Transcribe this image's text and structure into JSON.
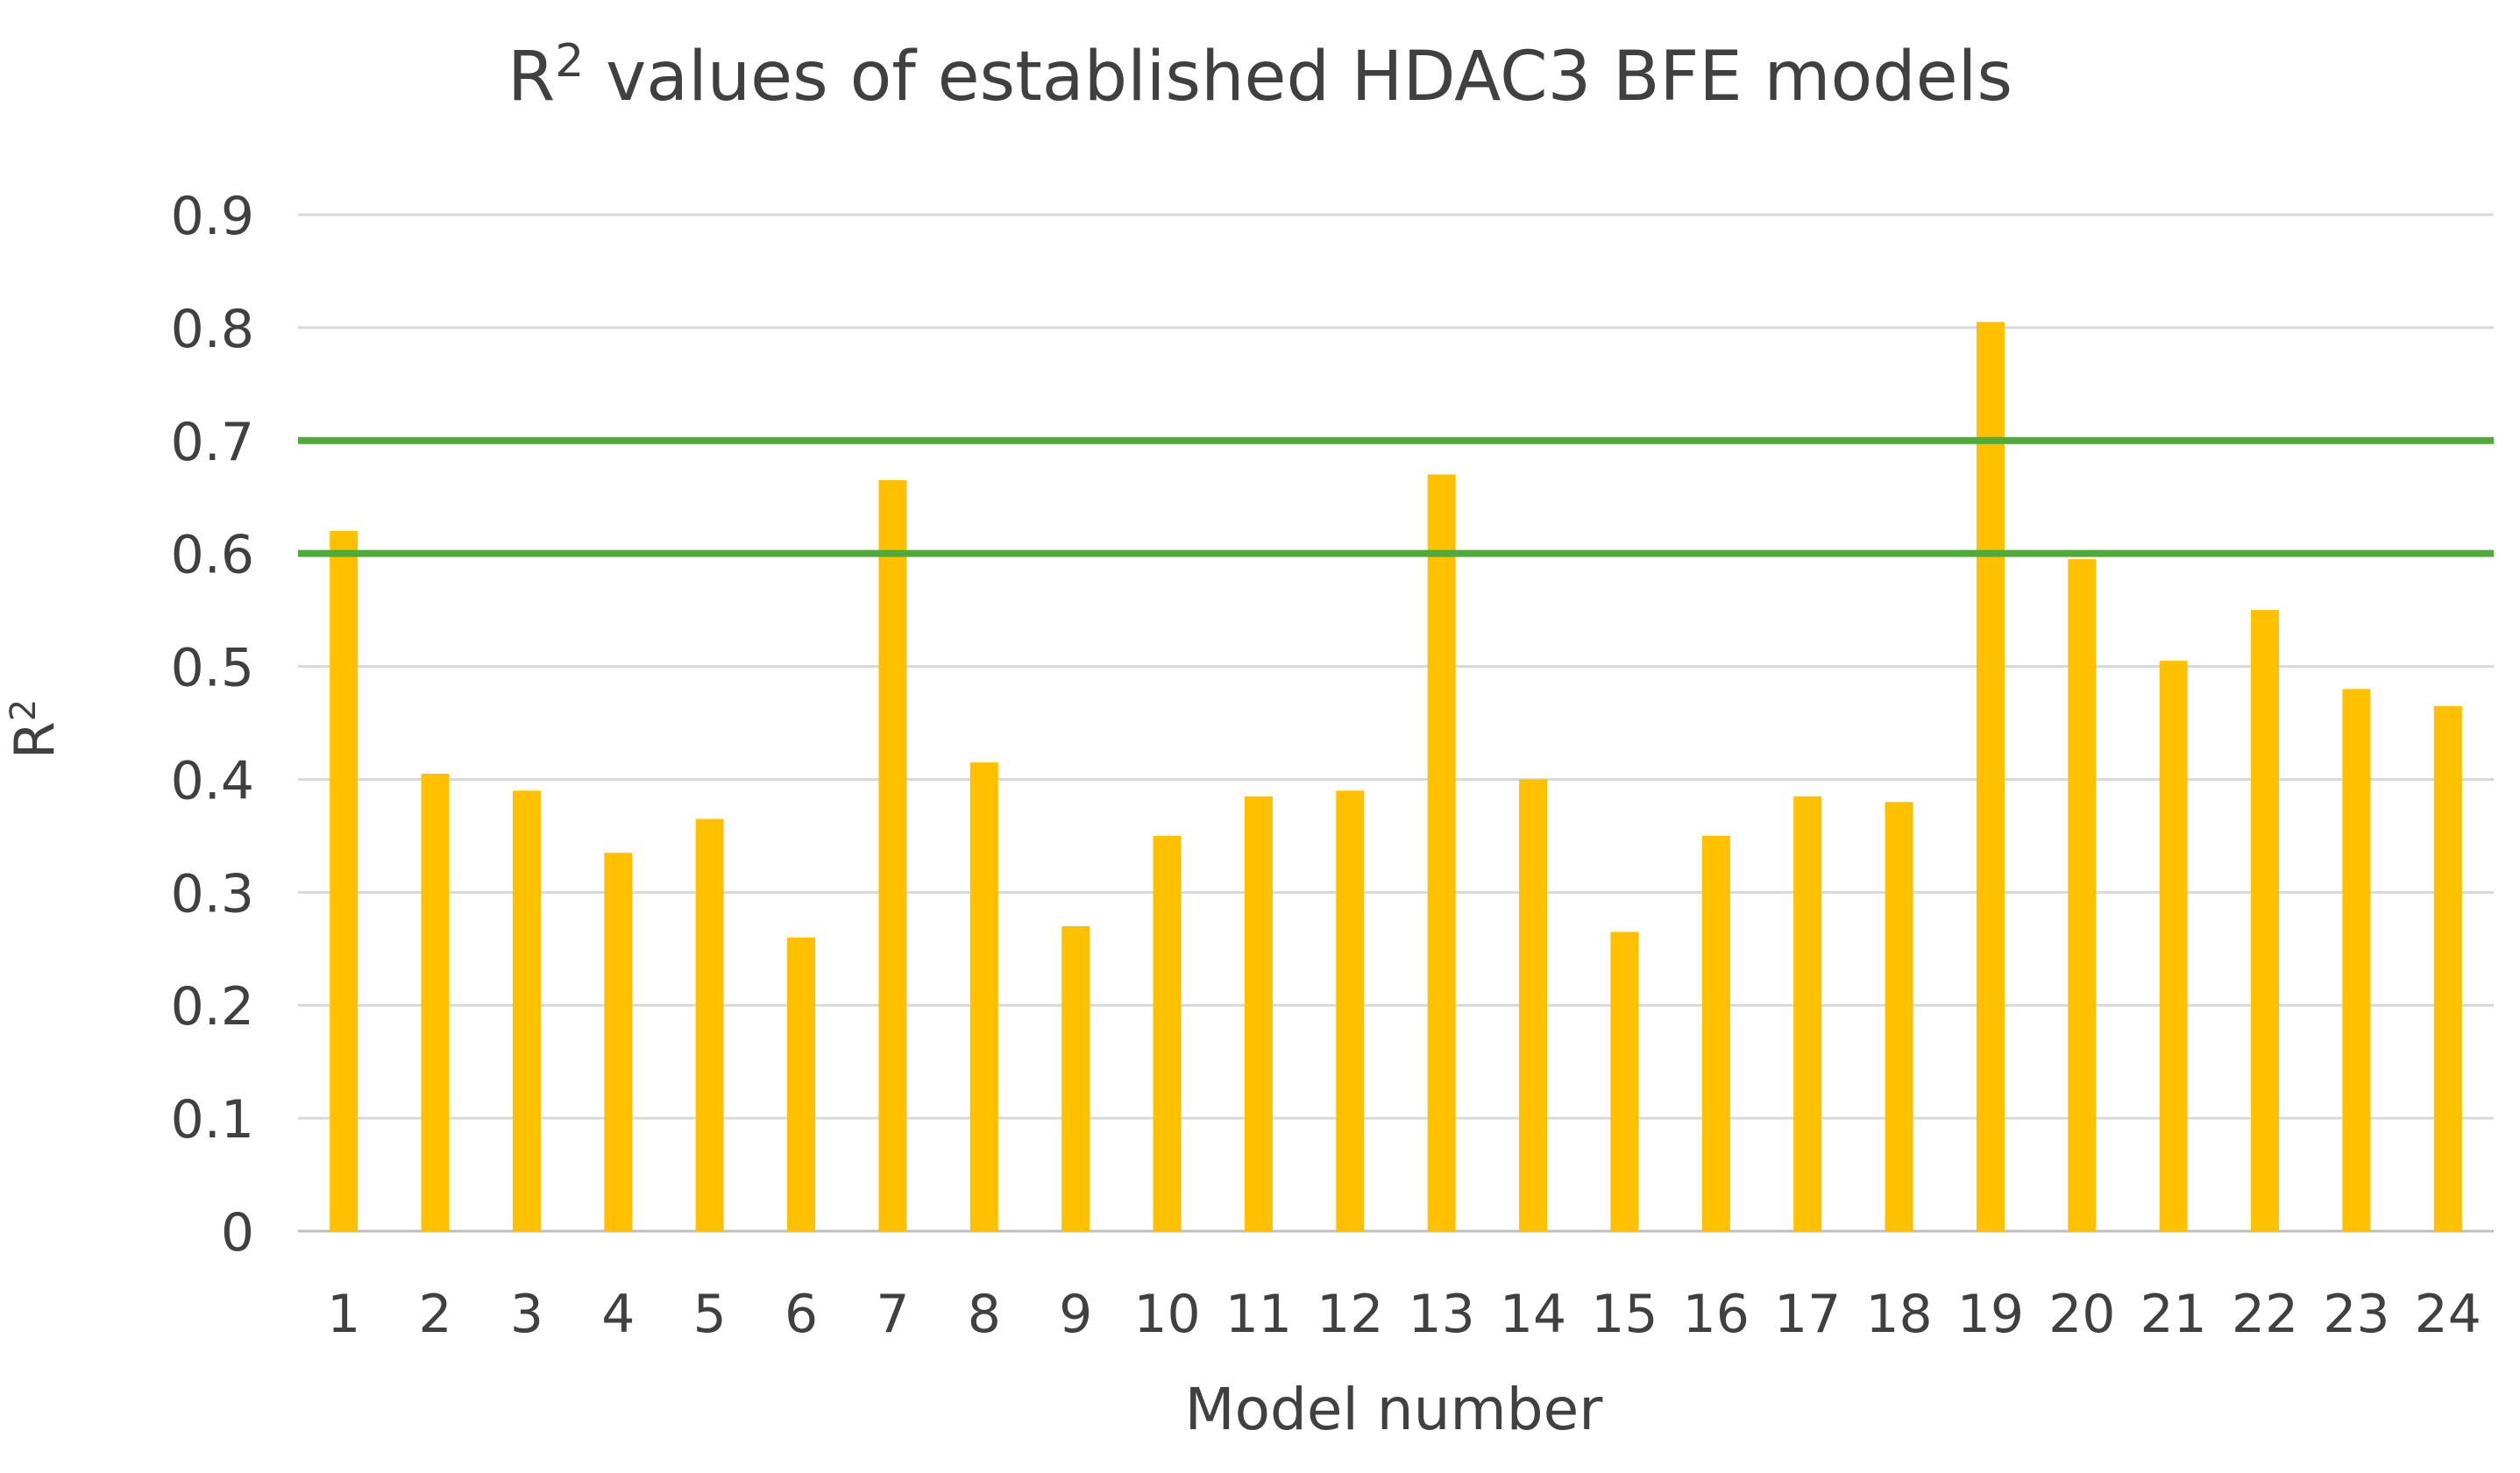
{
  "chart_data": {
    "type": "bar",
    "title": {
      "main": "R",
      "superscript": "2",
      "rest": " values of established HDAC3 BFE models"
    },
    "xlabel": "Model number",
    "ylabel": {
      "main": "R",
      "superscript": "2"
    },
    "categories": [
      "1",
      "2",
      "3",
      "4",
      "5",
      "6",
      "7",
      "8",
      "9",
      "10",
      "11",
      "12",
      "13",
      "14",
      "15",
      "16",
      "17",
      "18",
      "19",
      "20",
      "21",
      "22",
      "23",
      "24"
    ],
    "values": [
      0.62,
      0.405,
      0.39,
      0.335,
      0.365,
      0.26,
      0.665,
      0.415,
      0.27,
      0.35,
      0.385,
      0.39,
      0.67,
      0.4,
      0.265,
      0.35,
      0.385,
      0.38,
      0.805,
      0.595,
      0.505,
      0.55,
      0.48,
      0.465
    ],
    "yticks": [
      "0",
      "0.1",
      "0.2",
      "0.3",
      "0.4",
      "0.5",
      "0.6",
      "0.7",
      "0.8",
      "0.9"
    ],
    "ylim": [
      0,
      0.9
    ],
    "grid": true,
    "reference_lines": [
      0.6,
      0.7
    ],
    "colors": {
      "bar": "#FFC000",
      "reference_line": "#4EAA3A",
      "grid": "#D9D9D9",
      "axis": "#BFBFBF",
      "text": "#404040"
    }
  }
}
